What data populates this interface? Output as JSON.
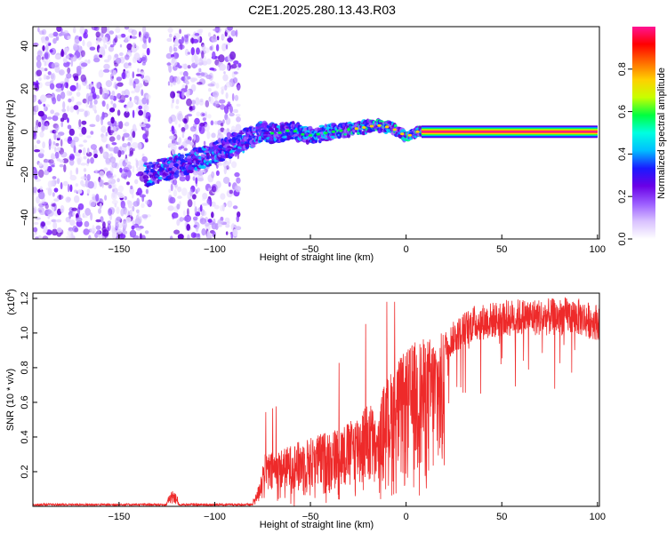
{
  "title": "C2E1.2025.280.13.43.R03",
  "chart_data": [
    {
      "type": "heatmap",
      "name": "spectrogram",
      "xlabel": "Height of straight line (km)",
      "ylabel": "Frequency (Hz)",
      "xlim": [
        -195,
        101
      ],
      "ylim": [
        -50,
        49
      ],
      "xticks": [
        -150,
        -100,
        -50,
        0,
        50,
        100
      ],
      "yticks": [
        -40,
        -20,
        0,
        20,
        40
      ],
      "colorbar": {
        "label": "Normalized spectral amplitude",
        "range": [
          0,
          1
        ],
        "ticks": [
          0.0,
          0.2,
          0.4,
          0.6,
          0.8
        ],
        "tick_labels": [
          "0.0",
          "0.2",
          "0.4",
          "0.6",
          "0.8"
        ],
        "colors": [
          "#ffffff",
          "#d9c2ff",
          "#9b5cff",
          "#6a00e6",
          "#1a1aff",
          "#00bfff",
          "#00ffe0",
          "#00ff40",
          "#c8ff00",
          "#ffd000",
          "#ff6a00",
          "#ff0000",
          "#ff1493"
        ]
      },
      "ridge": {
        "x": [
          -135,
          -128,
          -120,
          -110,
          -100,
          -90,
          -82,
          -75,
          -68,
          -60,
          -52,
          -45,
          -38,
          -30,
          -22,
          -15,
          -8,
          -2,
          0,
          3,
          6,
          10,
          20,
          50,
          100
        ],
        "y": [
          -20,
          -18,
          -16,
          -13,
          -10,
          -6,
          -3,
          0,
          -1,
          1,
          -2,
          -1,
          0,
          1,
          2,
          3,
          2,
          -1,
          -3,
          -1,
          0,
          0,
          0,
          0,
          0
        ]
      },
      "noise_regions": [
        {
          "x_from": -195,
          "x_to": -134,
          "note": "scattered purple noise"
        },
        {
          "x_from": -124,
          "x_to": -87,
          "note": "scattered purple noise"
        }
      ],
      "tone_segment": {
        "x_from": 8,
        "x_to": 100,
        "y": 0
      }
    },
    {
      "type": "line",
      "name": "snr",
      "xlabel": "Height of straight line (km)",
      "ylabel": "SNR (10 * v/v)",
      "scale_label": "(x10",
      "scale_exp": "4",
      "scale_close": ")",
      "xlim": [
        -195,
        101
      ],
      "ylim": [
        0,
        1.23
      ],
      "xticks": [
        -150,
        -100,
        -50,
        0,
        50,
        100
      ],
      "yticks": [
        0.2,
        0.4,
        0.6,
        0.8,
        1.0,
        1.2
      ],
      "line_color": "#ee2a2a",
      "envelope_x": [
        -195,
        -130,
        -125,
        -122,
        -118,
        -100,
        -82,
        -78,
        -74,
        -65,
        -55,
        -45,
        -35,
        -28,
        -22,
        -18,
        -15,
        -12,
        -8,
        -4,
        0,
        5,
        10,
        15,
        20,
        25,
        30,
        35,
        40,
        50,
        60,
        70,
        80,
        85,
        90,
        95,
        100
      ],
      "envelope_y": [
        0.0,
        0.005,
        0.03,
        0.09,
        0.02,
        0.0,
        0.0,
        0.08,
        0.3,
        0.33,
        0.38,
        0.42,
        0.46,
        0.5,
        0.58,
        0.6,
        0.45,
        0.7,
        0.78,
        0.85,
        0.9,
        0.96,
        0.97,
        0.99,
        1.01,
        1.07,
        1.12,
        1.16,
        1.17,
        1.19,
        1.2,
        1.2,
        1.2,
        1.21,
        1.2,
        1.18,
        1.17
      ]
    }
  ]
}
